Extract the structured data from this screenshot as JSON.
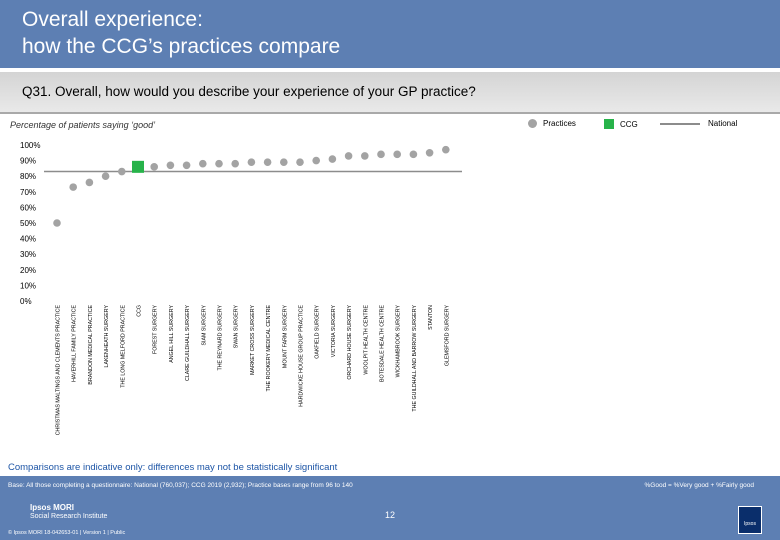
{
  "header": {
    "title": "Overall experience:\nhow the CCG’s practices compare"
  },
  "question": "Q31. Overall, how would you describe your experience of your GP practice?",
  "legend": {
    "practices": "Practices",
    "ccg": "CCG",
    "national": "National"
  },
  "note": "Comparisons are indicative only: differences may not be statistically significant",
  "footer": {
    "base": "Base: All those completing a questionnaire: National (760,037); CCG 2019 (2,932); Practice bases range from 96 to 140",
    "definition": "%Good = %Very good + %Fairly good",
    "page": "12",
    "logo_line1": "Ipsos MORI",
    "logo_line2": "Social Research Institute",
    "copyright": "© Ipsos MORI    18-042653-01 | Version 1 | Public",
    "badge": "Ipsos"
  },
  "colors": {
    "practice": "#a3a3a3",
    "ccg": "#27b34a",
    "national": "#8c8c8c",
    "brand": "#5d7fb3"
  },
  "chart_data": {
    "type": "scatter",
    "ylabel": "Percentage of patients saying ‘good’",
    "ylim": [
      0,
      100
    ],
    "yticks": [
      "0%",
      "10%",
      "20%",
      "30%",
      "40%",
      "50%",
      "60%",
      "70%",
      "80%",
      "90%",
      "100%"
    ],
    "national": 83,
    "categories": [
      "CHRISTMAS MALTINGS AND CLEMENTS PRACTICE",
      "HAVERHILL FAMILY PRACTICE",
      "BRANDON MEDICAL PRACTICE",
      "LAKENHEATH SURGERY",
      "THE LONG MELFORD PRACTICE",
      "CCG",
      "FOREST SURGERY",
      "ANGEL HILL SURGERY",
      "CLARE GUILDHALL SURGERY",
      "SIAM SURGERY",
      "THE REYNARD SURGERY",
      "SWAN SURGERY",
      "MARKET CROSS SURGERY",
      "THE ROOKERY MEDICAL CENTRE",
      "MOUNT FARM SURGERY",
      "HARDWICKE HOUSE GROUP PRACTICE",
      "OAKFIELD SURGERY",
      "VICTORIA SURGERY",
      "ORCHARD HOUSE SURGERY",
      "WOOLPIT HEALTH CENTRE",
      "BOTESDALE HEALTH CENTRE",
      "WICKHAMBROOK SURGERY",
      "THE GUILDHALL AND BARROW SURGERY",
      "STANTON",
      "GLEMSFORD SURGERY"
    ],
    "values": [
      50,
      73,
      76,
      80,
      83,
      86,
      86,
      87,
      87,
      88,
      88,
      88,
      89,
      89,
      89,
      89,
      90,
      91,
      93,
      93,
      94,
      94,
      94,
      95,
      97
    ],
    "ccg_index": 5
  }
}
